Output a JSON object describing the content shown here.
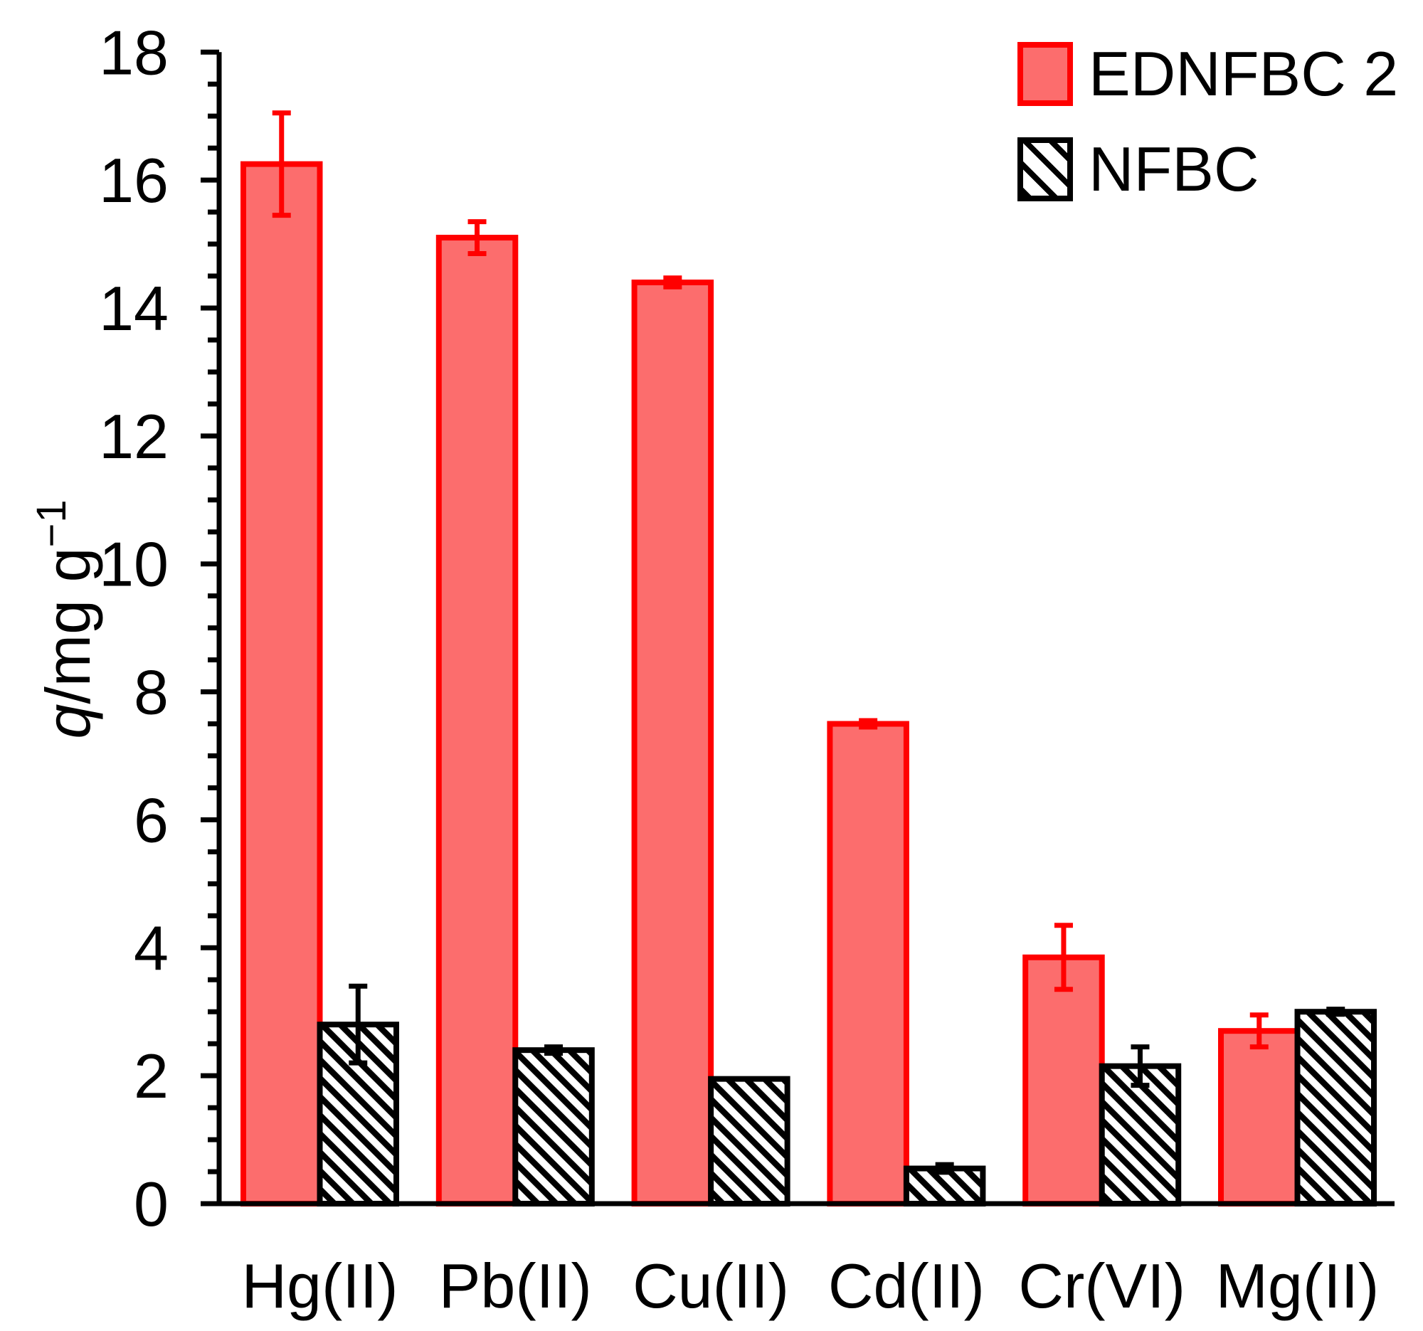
{
  "chart_data": {
    "type": "bar",
    "title": "",
    "categories": [
      "Hg(II)",
      "Pb(II)",
      "Cu(II)",
      "Cd(II)",
      "Cr(VI)",
      "Mg(II)"
    ],
    "series": [
      {
        "name": "EDNFBC 2",
        "style": "solid",
        "fill": "#FC6D6D",
        "stroke": "#FF0000",
        "values": [
          16.25,
          15.1,
          14.4,
          7.5,
          3.85,
          2.7
        ],
        "errors": [
          0.8,
          0.25,
          0.07,
          0.05,
          0.5,
          0.25
        ]
      },
      {
        "name": "NFBC",
        "style": "hatch",
        "fill": "#FFFFFF",
        "hatch_color": "#000000",
        "stroke": "#000000",
        "values": [
          2.8,
          2.4,
          1.95,
          0.55,
          2.15,
          3.0
        ],
        "errors": [
          0.6,
          0.05,
          0.0,
          0.06,
          0.3,
          0.04
        ]
      }
    ],
    "ylabel": {
      "q": "q",
      "unit": "/mg g",
      "sup": "−1"
    },
    "ylim": [
      0,
      18
    ],
    "ytick_step": 2,
    "yminor_step": 0.5,
    "ytick_labels": [
      "0",
      "2",
      "4",
      "6",
      "8",
      "10",
      "12",
      "14",
      "16",
      "18"
    ],
    "legend_position": "top-right",
    "grid": false,
    "axis_color": "#000000",
    "error_cap_halfwidth_note": "error bars with flat caps; red caps on EDNFBC 2, black caps on NFBC"
  }
}
